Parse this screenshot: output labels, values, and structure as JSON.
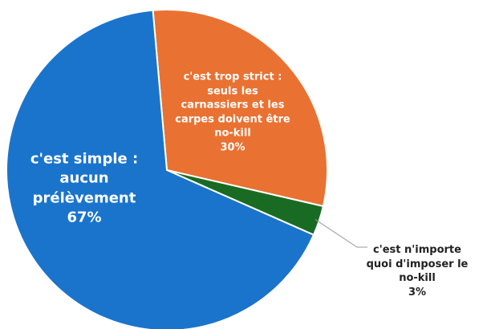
{
  "chart_data": {
    "type": "pie",
    "categories": [
      "c'est trop strict : seuls les carnassiers et les carpes doivent être no-kill",
      "c'est n'importe quoi d'imposer le no-kill",
      "c'est simple : aucun prélèvement"
    ],
    "values": [
      30,
      3,
      67
    ],
    "value_labels": [
      "30%",
      "3%",
      "67%"
    ],
    "colors": [
      "#e97132",
      "#196b24",
      "#1a74cc"
    ]
  }
}
